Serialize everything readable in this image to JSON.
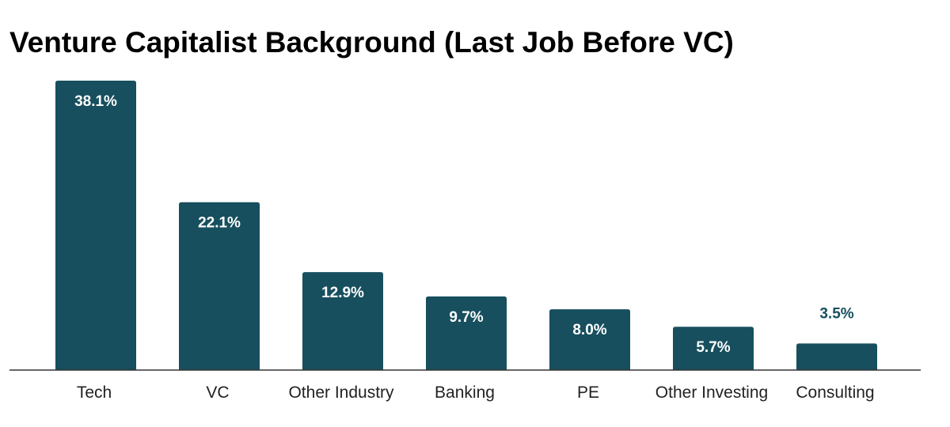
{
  "chart_data": {
    "type": "bar",
    "title": "Venture Capitalist Background (Last Job Before VC)",
    "xlabel": "",
    "ylabel": "",
    "categories": [
      "Tech",
      "VC",
      "Other Industry",
      "Banking",
      "PE",
      "Other Investing",
      "Consulting"
    ],
    "values": [
      38.1,
      22.1,
      12.9,
      9.7,
      8.0,
      5.7,
      3.5
    ],
    "data_labels": [
      "38.1%",
      "22.1%",
      "12.9%",
      "9.7%",
      "8.0%",
      "5.7%",
      "3.5%"
    ],
    "ylim": [
      0,
      38.1
    ],
    "grid": false,
    "legend": "none",
    "colors": {
      "bar": "#174f5e",
      "label_inside": "#ffffff",
      "label_outside": "#174f5e",
      "axis": "#333333"
    }
  }
}
